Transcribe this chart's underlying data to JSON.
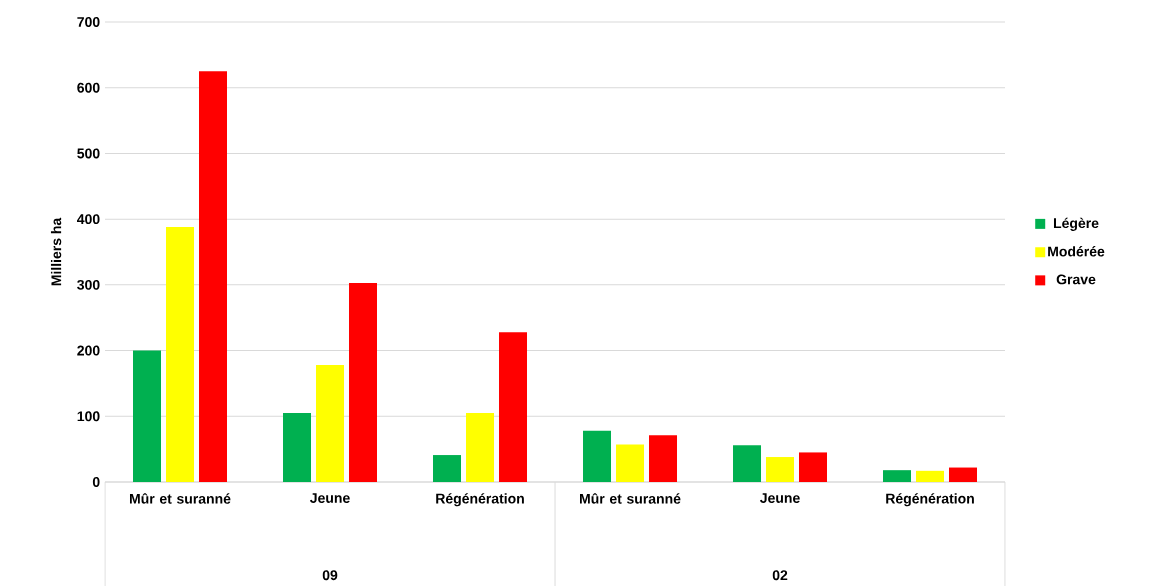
{
  "chart_data": {
    "type": "bar",
    "ylabel": "Milliers ha",
    "categories": [
      "Mûr et suranné",
      "Jeune",
      "Régénération",
      "Mûr et suranné",
      "Jeune",
      "Régénération"
    ],
    "series": [
      {
        "name": "Légère",
        "color": "#00b050",
        "values": [
          200,
          105,
          41,
          78,
          56,
          18
        ]
      },
      {
        "name": "Modérée",
        "color": "#ffff00",
        "values": [
          388,
          178,
          105,
          57,
          38,
          17
        ]
      },
      {
        "name": "Grave",
        "color": "#ff0000",
        "values": [
          625,
          303,
          228,
          71,
          45,
          22
        ]
      }
    ],
    "ylim": [
      0,
      700
    ],
    "yticks": [
      0,
      100,
      200,
      300,
      400,
      500,
      600,
      700
    ],
    "grid": "y",
    "legend": "right",
    "annotations": [
      "09",
      "02"
    ]
  }
}
